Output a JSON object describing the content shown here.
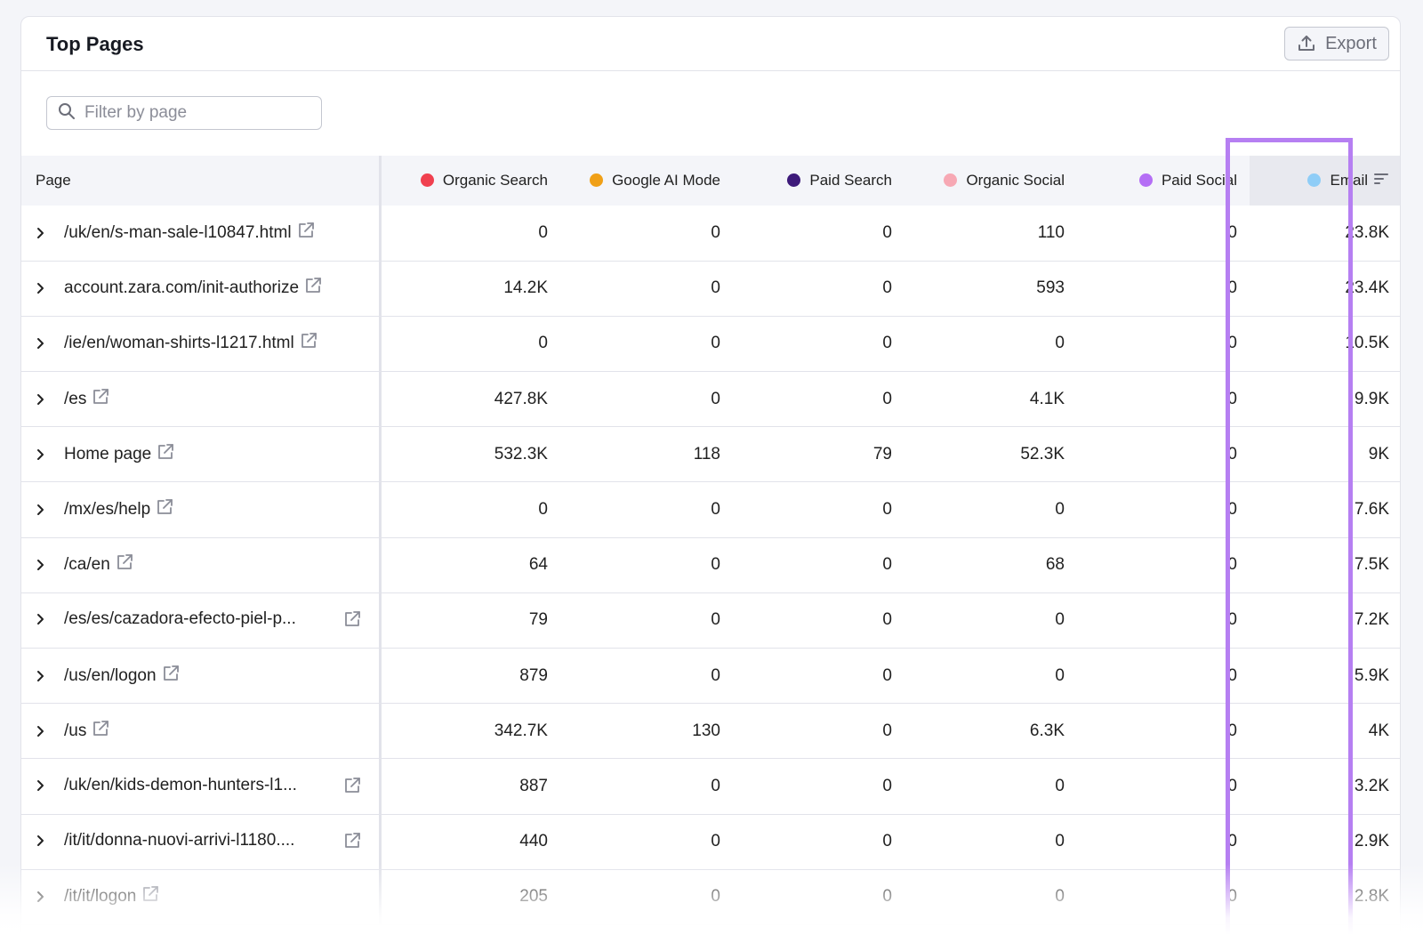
{
  "card": {
    "title": "Top Pages",
    "export_label": "Export"
  },
  "search": {
    "placeholder": "Filter by page"
  },
  "columns": [
    {
      "label": "Page"
    },
    {
      "label": "Organic Search",
      "color": "#f0404f"
    },
    {
      "label": "Google AI Mode",
      "color": "#f0a017"
    },
    {
      "label": "Paid Search",
      "color": "#3d1a7a"
    },
    {
      "label": "Organic Social",
      "color": "#f7a8b4"
    },
    {
      "label": "Paid Social",
      "color": "#b46ef5"
    },
    {
      "label": "Email",
      "color": "#8fcdf7"
    }
  ],
  "sorted_column": "Email",
  "highlight_color": "#b67ff2",
  "rows": [
    {
      "page": "/uk/en/s-man-sale-l10847.html",
      "organic_search": "0",
      "google_ai_mode": "0",
      "paid_search": "0",
      "organic_social": "110",
      "paid_social": "0",
      "email": "23.8K"
    },
    {
      "page": "account.zara.com/init-authorize",
      "organic_search": "14.2K",
      "google_ai_mode": "0",
      "paid_search": "0",
      "organic_social": "593",
      "paid_social": "0",
      "email": "23.4K"
    },
    {
      "page": "/ie/en/woman-shirts-l1217.html",
      "organic_search": "0",
      "google_ai_mode": "0",
      "paid_search": "0",
      "organic_social": "0",
      "paid_social": "0",
      "email": "10.5K"
    },
    {
      "page": "/es",
      "organic_search": "427.8K",
      "google_ai_mode": "0",
      "paid_search": "0",
      "organic_social": "4.1K",
      "paid_social": "0",
      "email": "9.9K"
    },
    {
      "page": "Home page",
      "organic_search": "532.3K",
      "google_ai_mode": "118",
      "paid_search": "79",
      "organic_social": "52.3K",
      "paid_social": "0",
      "email": "9K"
    },
    {
      "page": "/mx/es/help",
      "organic_search": "0",
      "google_ai_mode": "0",
      "paid_search": "0",
      "organic_social": "0",
      "paid_social": "0",
      "email": "7.6K"
    },
    {
      "page": "/ca/en",
      "organic_search": "64",
      "google_ai_mode": "0",
      "paid_search": "0",
      "organic_social": "68",
      "paid_social": "0",
      "email": "7.5K"
    },
    {
      "page": "/es/es/cazadora-efecto-piel-p...",
      "organic_search": "79",
      "google_ai_mode": "0",
      "paid_search": "0",
      "organic_social": "0",
      "paid_social": "0",
      "email": "7.2K"
    },
    {
      "page": "/us/en/logon",
      "organic_search": "879",
      "google_ai_mode": "0",
      "paid_search": "0",
      "organic_social": "0",
      "paid_social": "0",
      "email": "5.9K"
    },
    {
      "page": "/us",
      "organic_search": "342.7K",
      "google_ai_mode": "130",
      "paid_search": "0",
      "organic_social": "6.3K",
      "paid_social": "0",
      "email": "4K"
    },
    {
      "page": "/uk/en/kids-demon-hunters-l1...",
      "organic_search": "887",
      "google_ai_mode": "0",
      "paid_search": "0",
      "organic_social": "0",
      "paid_social": "0",
      "email": "3.2K"
    },
    {
      "page": "/it/it/donna-nuovi-arrivi-l1180....",
      "organic_search": "440",
      "google_ai_mode": "0",
      "paid_search": "0",
      "organic_social": "0",
      "paid_social": "0",
      "email": "2.9K"
    },
    {
      "page": "/it/it/logon",
      "organic_search": "205",
      "google_ai_mode": "0",
      "paid_search": "0",
      "organic_social": "0",
      "paid_social": "0",
      "email": "2.8K"
    }
  ]
}
